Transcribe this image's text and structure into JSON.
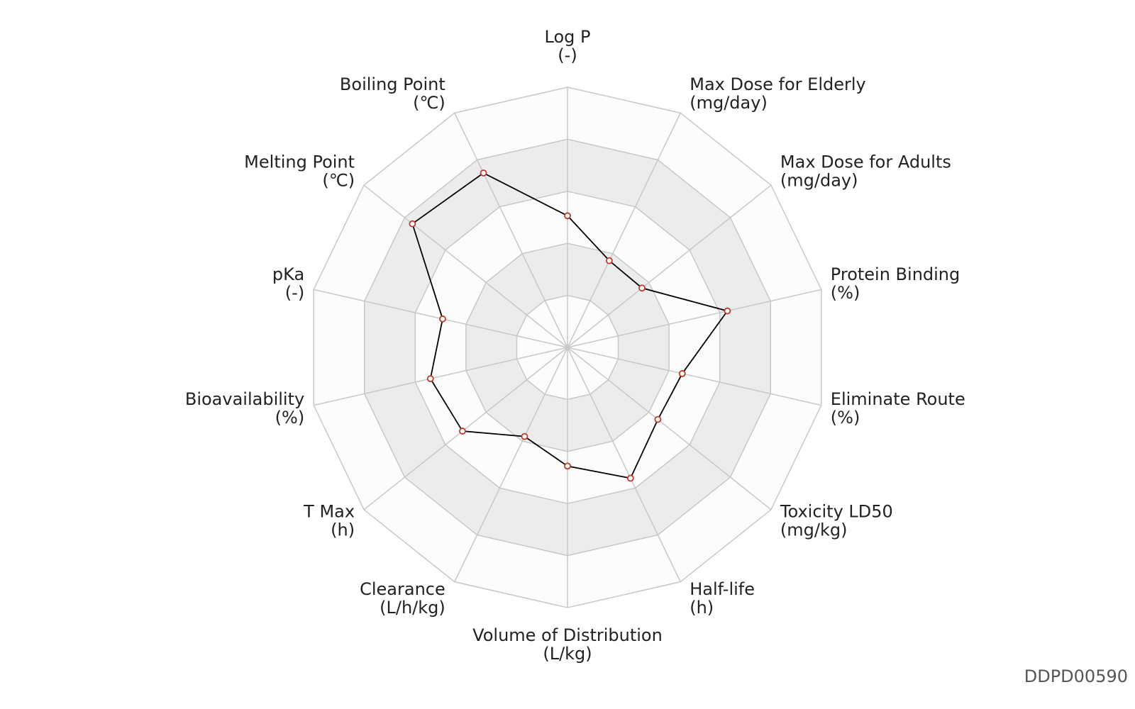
{
  "chart_data": {
    "type": "radar",
    "categories": [
      "Log P",
      "Max Dose for Elderly",
      "Max Dose for Adults",
      "Protein Binding",
      "Eliminate Route",
      "Toxicity LD50",
      "Half-life",
      "Volume of Distribution",
      "Clearance",
      "T Max",
      "Bioavailability",
      "pKa",
      "Melting Point",
      "Boiling Point"
    ],
    "units": [
      "(-)",
      "(mg/day)",
      "(mg/day)",
      "(%)",
      "(%)",
      "(mg/kg)",
      "(h)",
      "(L/kg)",
      "(L/h/kg)",
      "(h)",
      "(%)",
      "(-)",
      "(℃)",
      "(℃)"
    ],
    "values": [
      2.53,
      1.85,
      1.83,
      3.15,
      2.26,
      2.22,
      2.79,
      2.28,
      1.9,
      2.58,
      2.7,
      2.46,
      3.81,
      3.72
    ],
    "color": "#000000",
    "marker_color": "#c0392b",
    "rlim": [
      0,
      5
    ],
    "rticks": [
      1,
      2,
      3,
      4,
      5
    ],
    "grid": true,
    "watermark": "DDPD00590"
  }
}
